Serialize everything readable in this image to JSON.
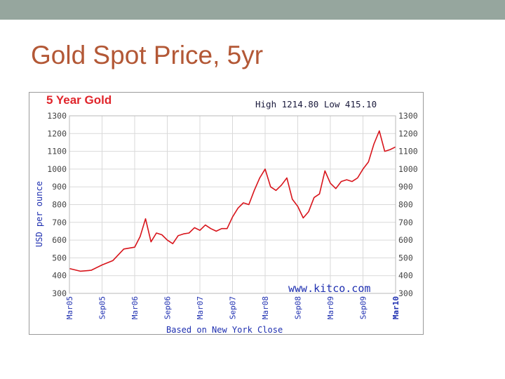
{
  "slide": {
    "title": "Gold Spot Price, 5yr",
    "top_band_color": "#96a69e",
    "title_color": "#b35836"
  },
  "chart_data": {
    "type": "line",
    "title": "5 Year Gold",
    "high_low": "High 1214.80 Low 415.10",
    "ylabel": "USD per ounce",
    "xlabel": "Based on New York Close",
    "watermark": "www.kitco.com",
    "ylim": [
      300,
      1300
    ],
    "yticks": [
      1300,
      1200,
      1100,
      1000,
      900,
      800,
      700,
      600,
      500,
      400,
      300
    ],
    "xlim": [
      "2005-03",
      "2010-03"
    ],
    "xticks": [
      "Mar05",
      "Sep05",
      "Mar06",
      "Sep06",
      "Mar07",
      "Sep07",
      "Mar08",
      "Sep08",
      "Mar09",
      "Sep09",
      "Mar10"
    ],
    "grid": true,
    "series": [
      {
        "color": "#d8141b",
        "points": [
          [
            "2005-03",
            440
          ],
          [
            "2005-05",
            425
          ],
          [
            "2005-07",
            430
          ],
          [
            "2005-09",
            460
          ],
          [
            "2005-11",
            485
          ],
          [
            "2006-01",
            550
          ],
          [
            "2006-03",
            560
          ],
          [
            "2006-04",
            620
          ],
          [
            "2006-05",
            720
          ],
          [
            "2006-06",
            590
          ],
          [
            "2006-07",
            640
          ],
          [
            "2006-08",
            630
          ],
          [
            "2006-09",
            600
          ],
          [
            "2006-10",
            580
          ],
          [
            "2006-11",
            625
          ],
          [
            "2006-12",
            635
          ],
          [
            "2007-01",
            640
          ],
          [
            "2007-02",
            670
          ],
          [
            "2007-03",
            655
          ],
          [
            "2007-04",
            685
          ],
          [
            "2007-05",
            665
          ],
          [
            "2007-06",
            650
          ],
          [
            "2007-07",
            665
          ],
          [
            "2007-08",
            665
          ],
          [
            "2007-09",
            730
          ],
          [
            "2007-10",
            780
          ],
          [
            "2007-11",
            810
          ],
          [
            "2007-12",
            800
          ],
          [
            "2008-01",
            880
          ],
          [
            "2008-02",
            950
          ],
          [
            "2008-03",
            1000
          ],
          [
            "2008-04",
            900
          ],
          [
            "2008-05",
            880
          ],
          [
            "2008-06",
            910
          ],
          [
            "2008-07",
            950
          ],
          [
            "2008-08",
            830
          ],
          [
            "2008-09",
            790
          ],
          [
            "2008-10",
            725
          ],
          [
            "2008-11",
            760
          ],
          [
            "2008-12",
            840
          ],
          [
            "2009-01",
            860
          ],
          [
            "2009-02",
            990
          ],
          [
            "2009-03",
            920
          ],
          [
            "2009-04",
            890
          ],
          [
            "2009-05",
            930
          ],
          [
            "2009-06",
            940
          ],
          [
            "2009-07",
            930
          ],
          [
            "2009-08",
            950
          ],
          [
            "2009-09",
            1000
          ],
          [
            "2009-10",
            1040
          ],
          [
            "2009-11",
            1140
          ],
          [
            "2009-12",
            1215
          ],
          [
            "2010-01",
            1100
          ],
          [
            "2010-02",
            1110
          ],
          [
            "2010-03",
            1125
          ]
        ]
      }
    ]
  }
}
